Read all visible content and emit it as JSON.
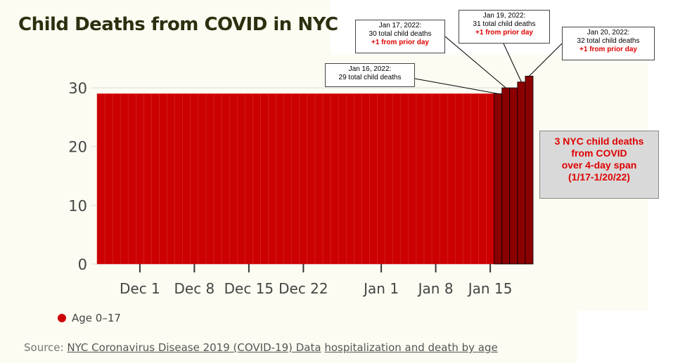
{
  "title": "Child Deaths from COVID in NYC",
  "colors": {
    "bar": "#cc0000",
    "bar_highlight": "#8b0000",
    "bar_outline": "#d93030",
    "annotation_red": "#e00000",
    "summary_bg": "#d9d9d9",
    "panel_bg": "#fcfcf2"
  },
  "legend": {
    "label": "Age 0–17",
    "icon": "circle"
  },
  "source": {
    "prefix": "Source:",
    "link1": "NYC Coronavirus Disease 2019 (COVID-19) Data",
    "link2": "hospitalization and death by age"
  },
  "callouts": [
    {
      "date": "Jan 16, 2022:",
      "total": "29 total child deaths",
      "change": ""
    },
    {
      "date": "Jan 17, 2022:",
      "total": "30 total child deaths",
      "change": "+1 from prior day"
    },
    {
      "date": "Jan 19, 2022:",
      "total": "31 total child deaths",
      "change": "+1 from prior day"
    },
    {
      "date": "Jan 20, 2022:",
      "total": "32 total child deaths",
      "change": "+1 from prior day"
    }
  ],
  "summary": {
    "line1": "3 NYC child deaths",
    "line2": "from COVID",
    "line3": "over 4-day span",
    "line4": "(1/17-1/20/22)"
  },
  "chart_data": {
    "type": "bar",
    "title": "Child Deaths from COVID in NYC",
    "xlabel": "",
    "ylabel": "",
    "ylim": [
      0,
      33
    ],
    "yticks": [
      0,
      10,
      20,
      30
    ],
    "grid": true,
    "legend_position": "bottom-left",
    "x_start": "2021-11-26",
    "x_end": "2022-01-20",
    "xtick_labels": [
      "Dec 1",
      "Dec 8",
      "Dec 15",
      "Dec 22",
      "Jan 1",
      "Jan 8",
      "Jan 15"
    ],
    "xtick_dates": [
      "2021-12-01",
      "2021-12-08",
      "2021-12-15",
      "2021-12-22",
      "2022-01-01",
      "2022-01-08",
      "2022-01-15"
    ],
    "series": [
      {
        "name": "Age 0–17",
        "baseline_value": 29,
        "values_by_date": [
          {
            "date": "2022-01-16",
            "value": 29
          },
          {
            "date": "2022-01-17",
            "value": 30
          },
          {
            "date": "2022-01-18",
            "value": 30
          },
          {
            "date": "2022-01-19",
            "value": 31
          },
          {
            "date": "2022-01-20",
            "value": 32
          }
        ],
        "highlight_from": "2022-01-16"
      }
    ]
  }
}
